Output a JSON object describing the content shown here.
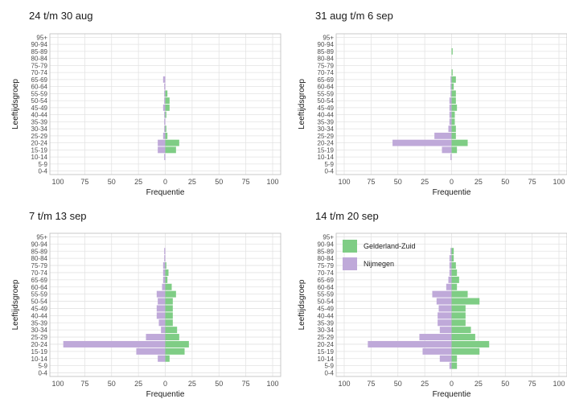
{
  "colors": {
    "gelderland": "#7fcd85",
    "nijmegen": "#bfa9d9",
    "panel_bg": "#ffffff",
    "grid": "#e3e3e3",
    "border": "#bdbdbd"
  },
  "legend": {
    "gelderland": "Gelderland-Zuid",
    "nijmegen": "Nijmegen"
  },
  "chart_data": [
    {
      "type": "bar",
      "title": "24 t/m 30 aug",
      "xlabel": "Frequentie",
      "ylabel": "Leeftijdsgroep",
      "xlim": [
        -100,
        100
      ],
      "xtick_values": [
        -100,
        -75,
        -50,
        -25,
        0,
        25,
        50,
        75,
        100
      ],
      "xtick_labels": [
        "100",
        "75",
        "50",
        "25",
        "0",
        "25",
        "50",
        "75",
        "100"
      ],
      "categories": [
        "0-4",
        "5-9",
        "10-14",
        "15-19",
        "20-24",
        "25-29",
        "30-34",
        "35-39",
        "40-44",
        "45-49",
        "50-54",
        "55-59",
        "60-64",
        "65-69",
        "70-74",
        "75-79",
        "80-84",
        "85-89",
        "90-94",
        "95+"
      ],
      "series": [
        {
          "name": "Gelderland-Zuid",
          "values": [
            0,
            0,
            0,
            10,
            13,
            2,
            1,
            0,
            1,
            4,
            4,
            2,
            0,
            0,
            0,
            0,
            0,
            0,
            0,
            0
          ]
        },
        {
          "name": "Nijmegen",
          "values": [
            0,
            0,
            1,
            7,
            7,
            2,
            1,
            1,
            1,
            2,
            1,
            1,
            1,
            2,
            0,
            0,
            0,
            0,
            0,
            0
          ]
        }
      ]
    },
    {
      "type": "bar",
      "title": "31 aug t/m 6 sep",
      "xlabel": "Frequentie",
      "ylabel": "Leeftijdsgroep",
      "xlim": [
        -100,
        100
      ],
      "xtick_values": [
        -100,
        -75,
        -50,
        -25,
        0,
        25,
        50,
        75,
        100
      ],
      "xtick_labels": [
        "100",
        "75",
        "50",
        "25",
        "0",
        "25",
        "50",
        "75",
        "100"
      ],
      "categories": [
        "0-4",
        "5-9",
        "10-14",
        "15-19",
        "20-24",
        "25-29",
        "30-34",
        "35-39",
        "40-44",
        "45-49",
        "50-54",
        "55-59",
        "60-64",
        "65-69",
        "70-74",
        "75-79",
        "80-84",
        "85-89",
        "90-94",
        "95+"
      ],
      "series": [
        {
          "name": "Gelderland-Zuid",
          "values": [
            0,
            0,
            0,
            5,
            15,
            4,
            4,
            3,
            3,
            5,
            4,
            4,
            2,
            4,
            1,
            0,
            0,
            1,
            0,
            0
          ]
        },
        {
          "name": "Nijmegen",
          "values": [
            0,
            0,
            1,
            9,
            55,
            16,
            3,
            2,
            2,
            2,
            2,
            1,
            1,
            1,
            0,
            0,
            0,
            0,
            0,
            0
          ]
        }
      ]
    },
    {
      "type": "bar",
      "title": "7 t/m 13 sep",
      "xlabel": "Frequentie",
      "ylabel": "Leeftijdsgroep",
      "xlim": [
        -100,
        100
      ],
      "xtick_values": [
        -100,
        -75,
        -50,
        -25,
        0,
        25,
        50,
        75,
        100
      ],
      "xtick_labels": [
        "100",
        "75",
        "50",
        "25",
        "0",
        "25",
        "50",
        "75",
        "100"
      ],
      "categories": [
        "0-4",
        "5-9",
        "10-14",
        "15-19",
        "20-24",
        "25-29",
        "30-34",
        "35-39",
        "40-44",
        "45-49",
        "50-54",
        "55-59",
        "60-64",
        "65-69",
        "70-74",
        "75-79",
        "80-84",
        "85-89",
        "90-94",
        "95+"
      ],
      "series": [
        {
          "name": "Gelderland-Zuid",
          "values": [
            0,
            0,
            4,
            18,
            22,
            13,
            11,
            7,
            7,
            7,
            7,
            10,
            6,
            2,
            3,
            1,
            0,
            0,
            0,
            0
          ]
        },
        {
          "name": "Nijmegen",
          "values": [
            0,
            0,
            7,
            27,
            95,
            18,
            4,
            6,
            8,
            8,
            7,
            8,
            3,
            2,
            2,
            2,
            1,
            1,
            0,
            0
          ]
        }
      ]
    },
    {
      "type": "bar",
      "title": "14 t/m 20 sep",
      "xlabel": "Frequentie",
      "ylabel": "Leeftijdsgroep",
      "xlim": [
        -100,
        100
      ],
      "xtick_values": [
        -100,
        -75,
        -50,
        -25,
        0,
        25,
        50,
        75,
        100
      ],
      "xtick_labels": [
        "100",
        "75",
        "50",
        "25",
        "0",
        "25",
        "50",
        "75",
        "100"
      ],
      "categories": [
        "0-4",
        "5-9",
        "10-14",
        "15-19",
        "20-24",
        "25-29",
        "30-34",
        "35-39",
        "40-44",
        "45-49",
        "50-54",
        "55-59",
        "60-64",
        "65-69",
        "70-74",
        "75-79",
        "80-84",
        "85-89",
        "90-94",
        "95+"
      ],
      "legend": [
        "Gelderland-Zuid",
        "Nijmegen"
      ],
      "series": [
        {
          "name": "Gelderland-Zuid",
          "values": [
            0,
            5,
            5,
            26,
            35,
            22,
            18,
            13,
            13,
            13,
            26,
            15,
            5,
            7,
            5,
            4,
            2,
            2,
            0,
            0
          ]
        },
        {
          "name": "Nijmegen",
          "values": [
            0,
            2,
            11,
            27,
            78,
            30,
            11,
            13,
            13,
            12,
            14,
            18,
            5,
            3,
            2,
            2,
            2,
            1,
            0,
            0
          ]
        }
      ]
    }
  ]
}
